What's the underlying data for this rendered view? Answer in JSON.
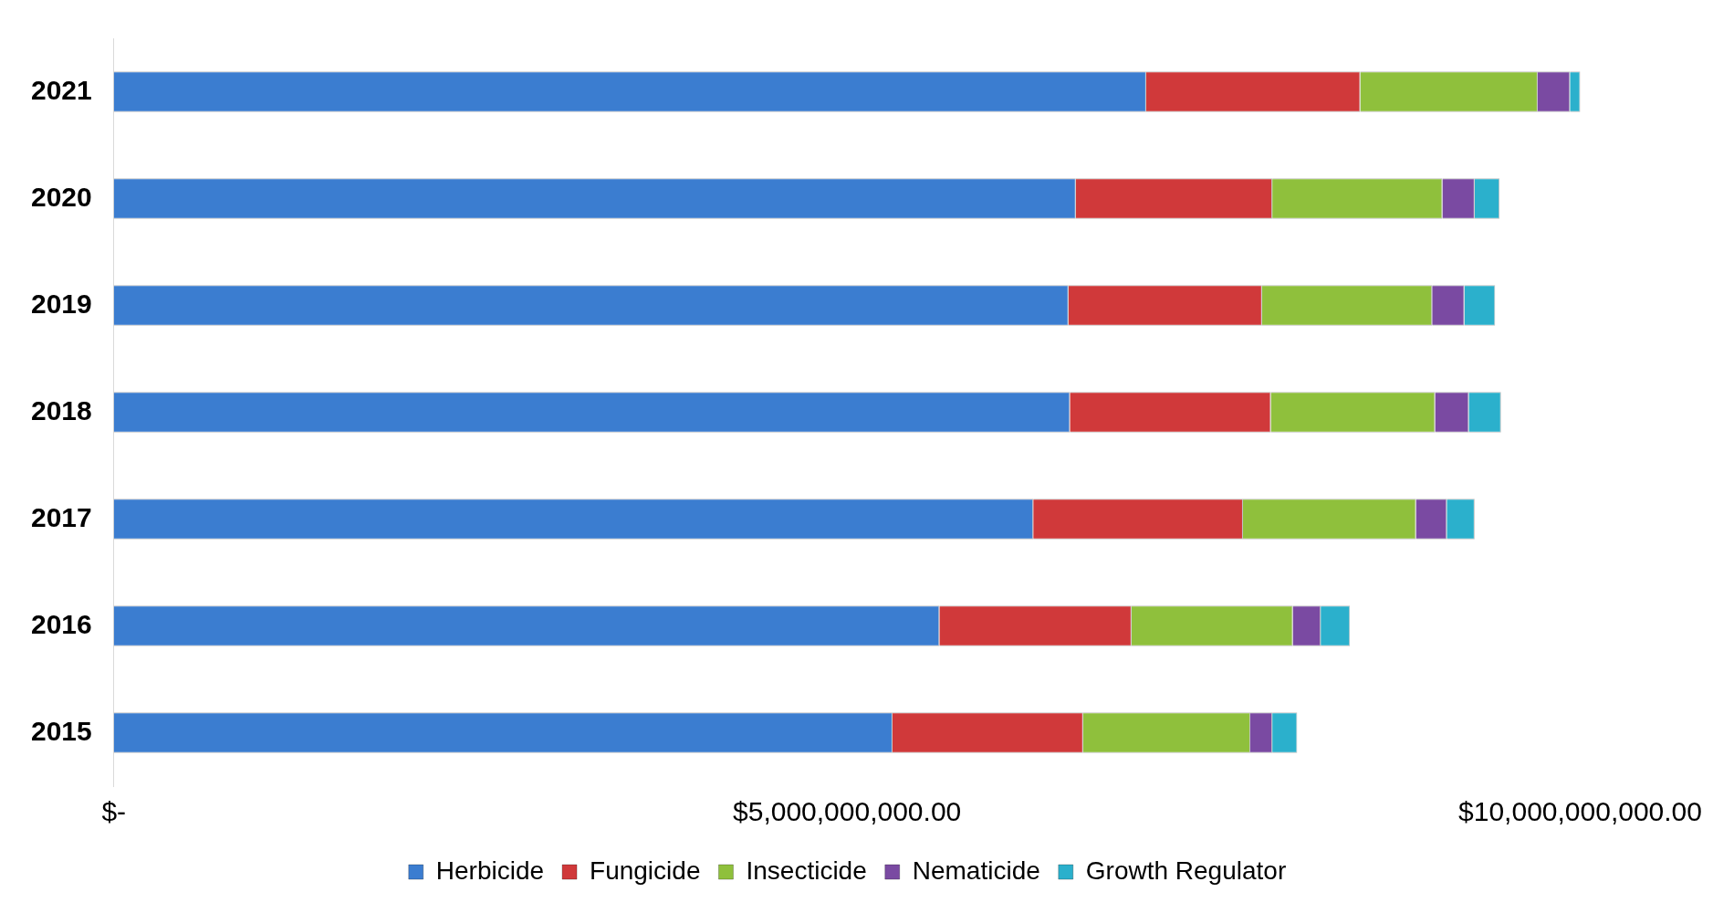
{
  "chart_data": {
    "type": "bar",
    "orientation": "horizontal",
    "stacked": true,
    "categories": [
      "2021",
      "2020",
      "2019",
      "2018",
      "2017",
      "2016",
      "2015"
    ],
    "series": [
      {
        "name": "Herbicide",
        "color": "#3b7dd0",
        "values": [
          7040000000,
          6560000000,
          6510000000,
          6520000000,
          6270000000,
          5630000000,
          5310000000
        ]
      },
      {
        "name": "Fungicide",
        "color": "#d0393a",
        "values": [
          1460000000,
          1340000000,
          1320000000,
          1370000000,
          1430000000,
          1310000000,
          1300000000
        ]
      },
      {
        "name": "Insecticide",
        "color": "#8fc03c",
        "values": [
          1210000000,
          1160000000,
          1160000000,
          1120000000,
          1180000000,
          1100000000,
          1140000000
        ]
      },
      {
        "name": "Nematicide",
        "color": "#7a4aa2",
        "values": [
          220000000,
          220000000,
          220000000,
          230000000,
          210000000,
          190000000,
          150000000
        ]
      },
      {
        "name": "Growth Regulator",
        "color": "#2bb0cc",
        "values": [
          70000000,
          170000000,
          210000000,
          220000000,
          190000000,
          200000000,
          170000000
        ]
      }
    ],
    "xlim": [
      0,
      10000000000
    ],
    "xticks": [
      {
        "value": 0,
        "label": "$-"
      },
      {
        "value": 5000000000,
        "label": "$5,000,000,000.00"
      },
      {
        "value": 10000000000,
        "label": "$10,000,000,000.00"
      }
    ],
    "grid": false,
    "legend": "bottom"
  }
}
